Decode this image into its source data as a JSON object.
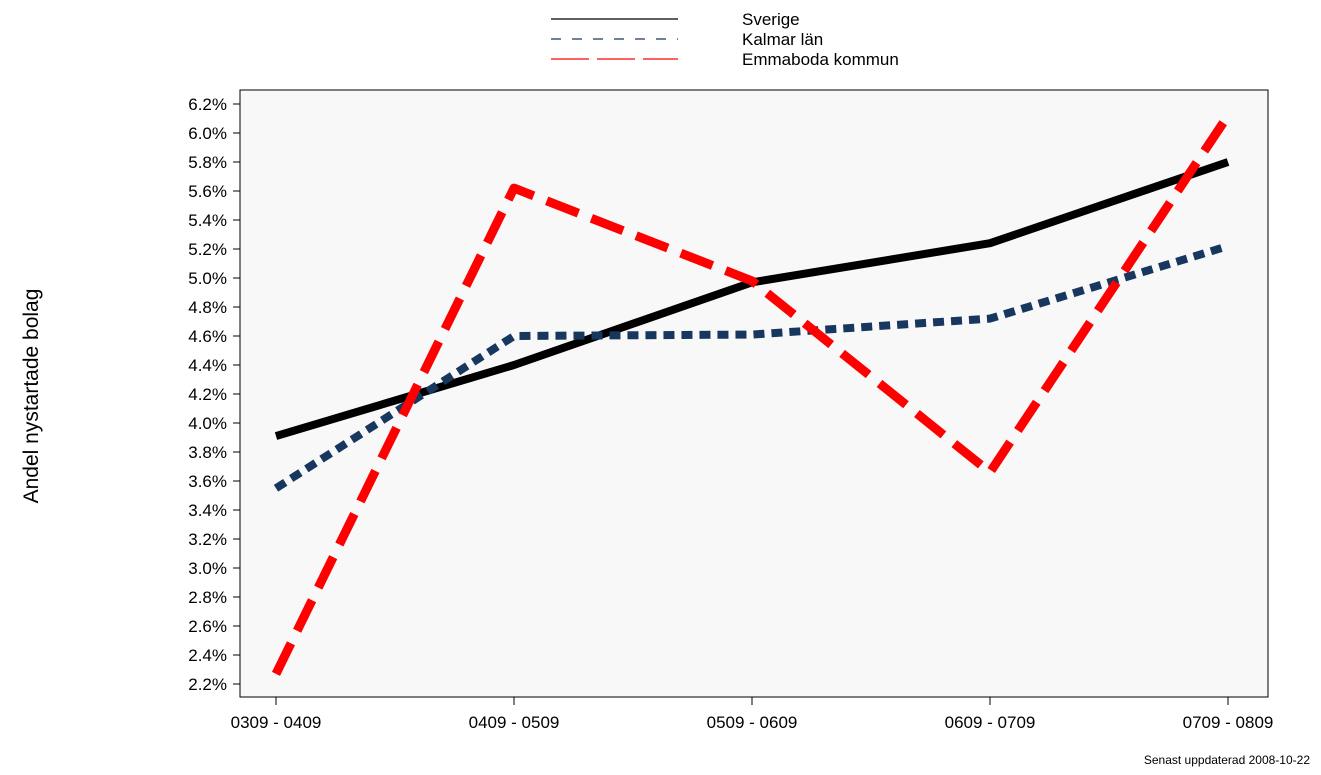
{
  "chart_data": {
    "type": "line",
    "categories": [
      "0309 - 0409",
      "0409 - 0509",
      "0509 - 0609",
      "0609 - 0709",
      "0709 - 0809"
    ],
    "ylabel": "Andel nystartade bolag",
    "xlabel": "",
    "title": "",
    "ylim": [
      2.2,
      6.2
    ],
    "ytick_step": 0.2,
    "y_unit": "%",
    "grid": false,
    "legend_position": "top-center",
    "series": [
      {
        "name": "Sverige",
        "values": [
          3.91,
          4.4,
          4.97,
          5.24,
          5.8
        ],
        "color": "#000000",
        "style": "solid"
      },
      {
        "name": "Kalmar län",
        "values": [
          3.55,
          4.6,
          4.61,
          4.72,
          5.22
        ],
        "color": "#17375e",
        "style": "dotted"
      },
      {
        "name": "Emmaboda kommun",
        "values": [
          2.27,
          5.62,
          4.98,
          3.66,
          6.12
        ],
        "color": "#ff0000",
        "style": "dashed"
      }
    ]
  },
  "footnote": "Senast uppdaterad 2008-10-22"
}
